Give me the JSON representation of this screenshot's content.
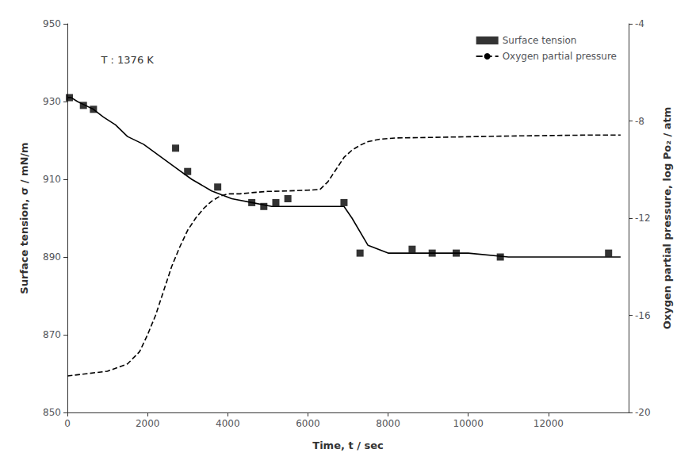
{
  "chart_data": {
    "type": "line",
    "annotation": "T : 1376 K",
    "xlabel": "Time, t / sec",
    "ylabel": "Surface tension, σ / mN/m",
    "y2label": "Oxygen partial pressure, log Po₂ / atm",
    "xlim": [
      0,
      14000
    ],
    "ylim": [
      850,
      950
    ],
    "y2lim": [
      -20,
      -4
    ],
    "xticks": [
      0,
      2000,
      4000,
      6000,
      8000,
      10000,
      12000
    ],
    "yticks": [
      850,
      870,
      890,
      910,
      930,
      950
    ],
    "y2ticks": [
      -20,
      -16,
      -12,
      -8,
      -4
    ],
    "grid": false,
    "legend": "upper right",
    "series": [
      {
        "type": "line",
        "line_style": "solid",
        "color": "#000000",
        "x": [
          0,
          100,
          250,
          450,
          650,
          900,
          1200,
          1500,
          1900,
          2300,
          2700,
          3100,
          3600,
          4100,
          4600,
          5100,
          5500,
          6000,
          6500,
          6700,
          6900,
          7100,
          7500,
          8000,
          8500,
          9000,
          10000,
          11000,
          12000,
          13000,
          13800
        ],
        "values": [
          931,
          931,
          930,
          929,
          928,
          926,
          924,
          921,
          919,
          916,
          913,
          910,
          907,
          905,
          904,
          903,
          903,
          903,
          903,
          903,
          903,
          900,
          893,
          891,
          891,
          891,
          891,
          890,
          890,
          890,
          890
        ]
      },
      {
        "name": "Surface tension",
        "type": "scatter",
        "marker": "square",
        "color": "#000000",
        "x": [
          50,
          400,
          650,
          2700,
          3000,
          3750,
          4600,
          4900,
          5200,
          5500,
          6900,
          7300,
          8600,
          9100,
          9700,
          10800,
          13500
        ],
        "values": [
          931,
          929,
          928,
          918,
          912,
          908,
          904,
          903,
          904,
          905,
          904,
          891,
          892,
          891,
          891,
          890,
          891
        ]
      },
      {
        "name": "Oxygen partial pressure",
        "type": "line",
        "line_style": "dashed",
        "color": "#000000",
        "axis": "y2",
        "x": [
          0,
          500,
          1000,
          1500,
          1800,
          2000,
          2200,
          2400,
          2600,
          2800,
          3000,
          3200,
          3400,
          3600,
          3800,
          4000,
          4300,
          4600,
          5000,
          5500,
          6000,
          6300,
          6500,
          6700,
          6900,
          7100,
          7300,
          7500,
          7800,
          8200,
          9000,
          10000,
          11000,
          12000,
          13000,
          13800
        ],
        "values": [
          -18.5,
          -18.4,
          -18.3,
          -18.0,
          -17.5,
          -16.8,
          -16.0,
          -15.0,
          -14.0,
          -13.2,
          -12.5,
          -12.0,
          -11.6,
          -11.3,
          -11.1,
          -11.0,
          -11.0,
          -10.95,
          -10.9,
          -10.88,
          -10.85,
          -10.82,
          -10.5,
          -10.0,
          -9.5,
          -9.2,
          -9.0,
          -8.85,
          -8.75,
          -8.7,
          -8.68,
          -8.65,
          -8.62,
          -8.6,
          -8.58,
          -8.58
        ]
      }
    ]
  }
}
